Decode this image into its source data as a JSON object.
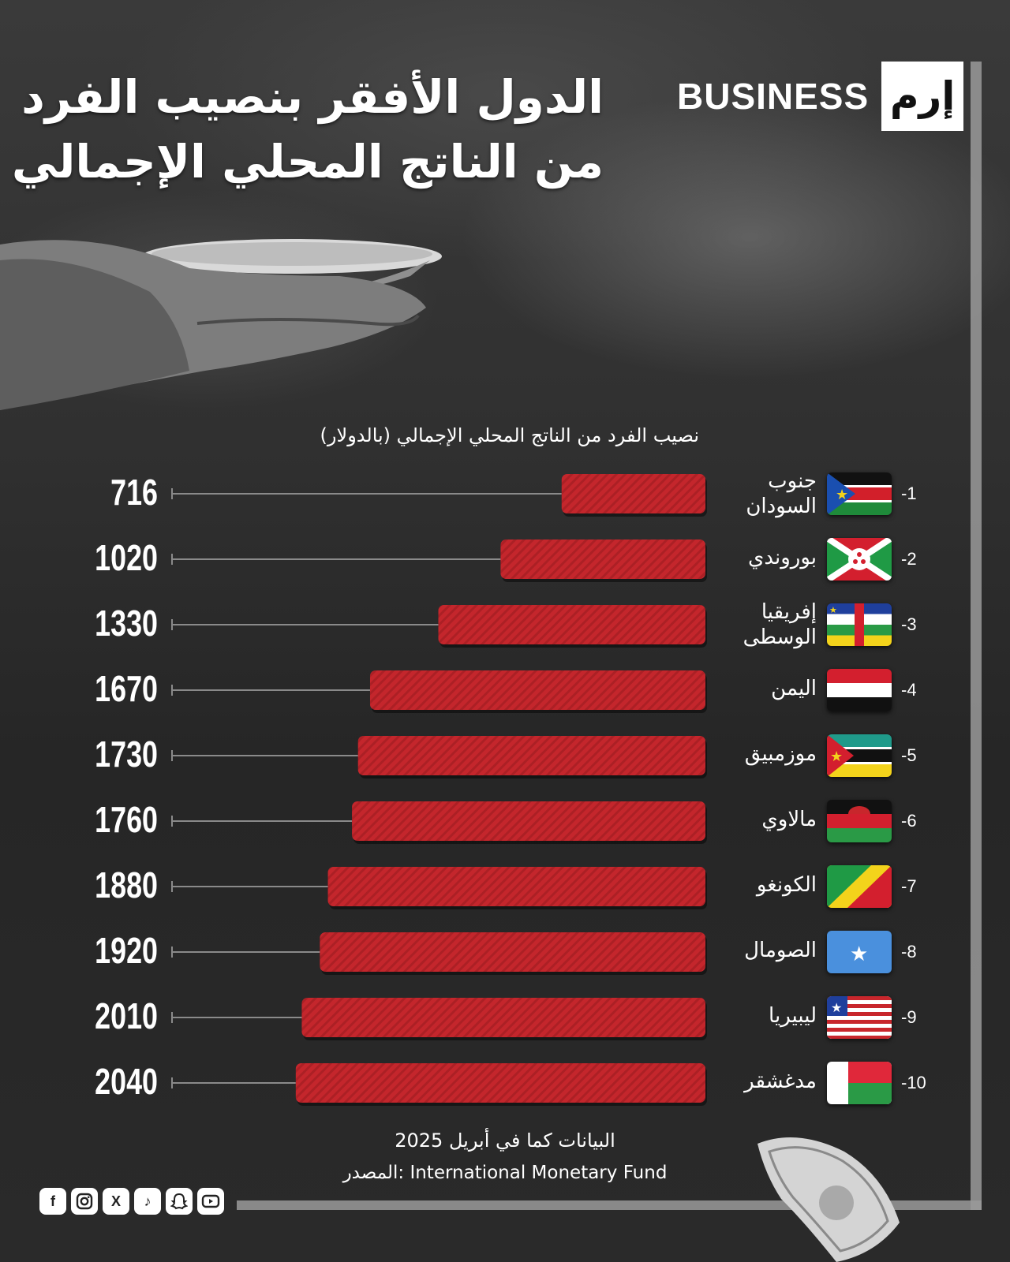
{
  "brand": {
    "word": "BUSINESS",
    "logo_text": "إرم"
  },
  "title": {
    "line1": "الدول الأفقر بنصيب الفرد",
    "line2": "من الناتج المحلي الإجمالي"
  },
  "footer": {
    "note": "البيانات كما في أبريل 2025",
    "source": "المصدر: International Monetary Fund"
  },
  "socials": [
    "facebook-icon",
    "instagram-icon",
    "x-icon",
    "tiktok-icon",
    "snapchat-icon",
    "youtube-icon"
  ],
  "colors": {
    "bar": "#c4262c",
    "bar_stripe": "#a81f24",
    "leader": "#8a8a8a",
    "background": "#2b2b2b"
  },
  "chart_data": {
    "type": "bar",
    "orientation": "horizontal",
    "ylabel": "نصيب الفرد من الناتج المحلي الإجمالي (بالدولار)",
    "categories": [
      "جنوب السودان",
      "بوروندي",
      "إفريقيا الوسطى",
      "اليمن",
      "موزمبيق",
      "مالاوي",
      "الكونغو",
      "الصومال",
      "ليبيريا",
      "مدغشقر"
    ],
    "ranks": [
      "-1",
      "-2",
      "-3",
      "-4",
      "-5",
      "-6",
      "-7",
      "-8",
      "-9",
      "-10"
    ],
    "value_labels": [
      "716",
      "1020",
      "1330",
      "1670",
      "1730",
      "1760",
      "1880",
      "1920",
      "2010",
      "2040"
    ],
    "values": [
      716,
      1020,
      1330,
      1670,
      1730,
      1760,
      1880,
      1920,
      2010,
      2040
    ],
    "flags": [
      "south-sudan-flag-icon",
      "burundi-flag-icon",
      "central-african-republic-flag-icon",
      "yemen-flag-icon",
      "mozambique-flag-icon",
      "malawi-flag-icon",
      "congo-flag-icon",
      "somalia-flag-icon",
      "liberia-flag-icon",
      "madagascar-flag-icon"
    ],
    "xlim": [
      0,
      2640
    ],
    "grid": false,
    "legend": "none"
  }
}
